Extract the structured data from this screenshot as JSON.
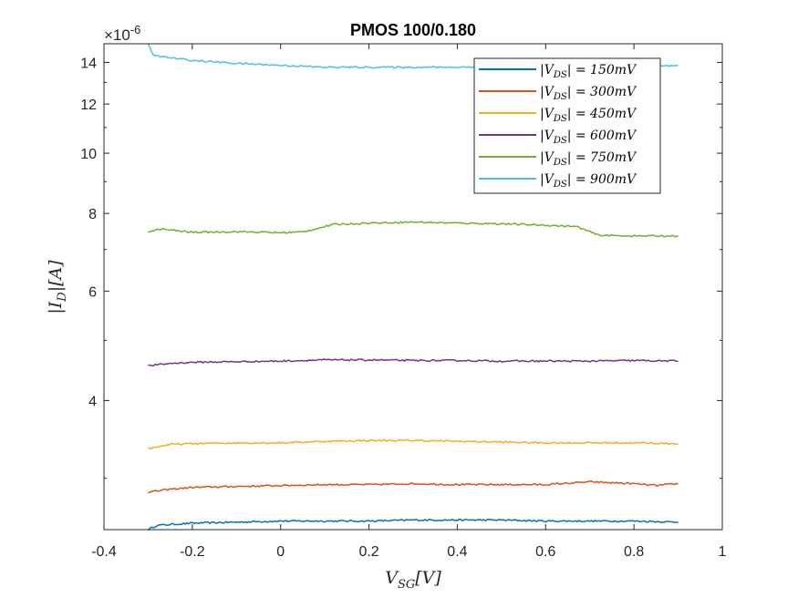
{
  "chart_data": {
    "type": "line",
    "title": "PMOS 100/0.180",
    "xlabel": "V_SG[V]",
    "ylabel": "|I_D|[A]",
    "y_exponent_label": "×10",
    "y_exponent_power": "-6",
    "y_scale": "log",
    "xlim": [
      -0.4,
      1.0
    ],
    "ylim": [
      2.48,
      15.0
    ],
    "x_ticks": [
      -0.4,
      -0.2,
      0,
      0.2,
      0.4,
      0.6,
      0.8,
      1.0
    ],
    "x_tick_labels": [
      "-0.4",
      "-0.2",
      "0",
      "0.2",
      "0.4",
      "0.6",
      "0.8",
      "1"
    ],
    "y_ticks": [
      4,
      6,
      8,
      10,
      12,
      14
    ],
    "y_tick_labels": [
      "4",
      "6",
      "8",
      "10",
      "12",
      "14"
    ],
    "grid": false,
    "legend_position": "top-right",
    "series": [
      {
        "name": "|V_DS| = 150mV",
        "legend_label": "|VDS| = 150mV",
        "color": "#0072BD",
        "x": [
          -0.3,
          -0.28,
          -0.2,
          -0.1,
          0.0,
          0.1,
          0.2,
          0.3,
          0.4,
          0.5,
          0.6,
          0.7,
          0.8,
          0.9
        ],
        "y": [
          2.48,
          2.52,
          2.54,
          2.55,
          2.56,
          2.56,
          2.56,
          2.57,
          2.57,
          2.57,
          2.56,
          2.56,
          2.56,
          2.55
        ]
      },
      {
        "name": "|V_DS| = 300mV",
        "legend_label": "|VDS| = 300mV",
        "color": "#D95319",
        "x": [
          -0.3,
          -0.25,
          -0.2,
          -0.1,
          0.0,
          0.1,
          0.2,
          0.3,
          0.4,
          0.5,
          0.6,
          0.7,
          0.8,
          0.85,
          0.9
        ],
        "y": [
          2.85,
          2.88,
          2.9,
          2.91,
          2.92,
          2.93,
          2.93,
          2.94,
          2.93,
          2.93,
          2.93,
          2.96,
          2.94,
          2.92,
          2.94
        ]
      },
      {
        "name": "|V_DS| = 450mV",
        "legend_label": "|VDS| = 450mV",
        "color": "#EDB120",
        "x": [
          -0.3,
          -0.25,
          -0.2,
          -0.1,
          0.0,
          0.1,
          0.2,
          0.3,
          0.4,
          0.5,
          0.6,
          0.7,
          0.8,
          0.9
        ],
        "y": [
          3.35,
          3.4,
          3.41,
          3.42,
          3.42,
          3.44,
          3.45,
          3.45,
          3.44,
          3.43,
          3.42,
          3.42,
          3.42,
          3.41
        ]
      },
      {
        "name": "|V_DS| = 600mV",
        "legend_label": "|VDS| = 600mV",
        "color": "#7E2F8E",
        "x": [
          -0.3,
          -0.25,
          -0.2,
          -0.1,
          0.0,
          0.1,
          0.2,
          0.3,
          0.4,
          0.5,
          0.6,
          0.7,
          0.8,
          0.9
        ],
        "y": [
          4.55,
          4.59,
          4.61,
          4.62,
          4.63,
          4.65,
          4.65,
          4.64,
          4.64,
          4.63,
          4.63,
          4.63,
          4.64,
          4.63
        ]
      },
      {
        "name": "|V_DS| = 750mV",
        "legend_label": "|VDS| = 750mV",
        "color": "#77AC30",
        "x": [
          -0.3,
          -0.27,
          -0.2,
          -0.1,
          0.0,
          0.05,
          0.12,
          0.2,
          0.3,
          0.4,
          0.5,
          0.6,
          0.67,
          0.72,
          0.8,
          0.9
        ],
        "y": [
          7.48,
          7.55,
          7.46,
          7.48,
          7.45,
          7.47,
          7.68,
          7.72,
          7.75,
          7.72,
          7.7,
          7.66,
          7.62,
          7.38,
          7.36,
          7.36
        ]
      },
      {
        "name": "|V_DS| = 900mV",
        "legend_label": "|VDS| = 900mV",
        "color": "#4DBEEE",
        "x": [
          -0.3,
          -0.29,
          -0.27,
          -0.2,
          -0.1,
          0.0,
          0.1,
          0.2,
          0.3,
          0.4,
          0.5,
          0.6,
          0.7,
          0.8,
          0.9
        ],
        "y": [
          15.0,
          14.4,
          14.3,
          14.1,
          13.95,
          13.85,
          13.75,
          13.75,
          13.75,
          13.75,
          13.8,
          13.8,
          13.85,
          13.85,
          13.8
        ]
      }
    ]
  }
}
